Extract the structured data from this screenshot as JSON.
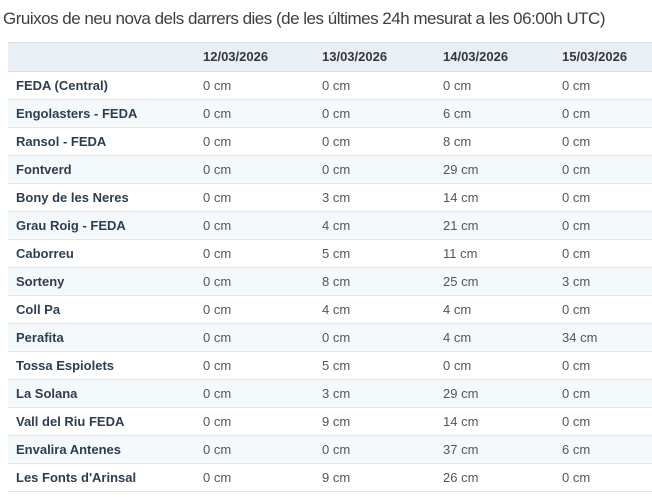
{
  "title": "Gruixos de neu nova dels darrers dies (de les últimes 24h mesurat a les 06:00h UTC)",
  "colors": {
    "header_background": "#e9eff4",
    "stripe_background": "#f4f9fc",
    "row_border": "#e3e7ea",
    "station_text": "#2d3e50",
    "value_text": "#51575e",
    "title_text": "#3f3f3f"
  },
  "chart_data": {
    "type": "table",
    "title": "Gruixos de neu nova dels darrers dies (de les últimes 24h mesurat a les 06:00h UTC)",
    "columns": [
      "",
      "12/03/2026",
      "13/03/2026",
      "14/03/2026",
      "15/03/2026"
    ],
    "rows": [
      {
        "station": "FEDA (Central)",
        "values": [
          "0 cm",
          "0 cm",
          "0 cm",
          "0 cm"
        ]
      },
      {
        "station": "Engolasters - FEDA",
        "values": [
          "0 cm",
          "0 cm",
          "6 cm",
          "0 cm"
        ]
      },
      {
        "station": "Ransol - FEDA",
        "values": [
          "0 cm",
          "0 cm",
          "8 cm",
          "0 cm"
        ]
      },
      {
        "station": "Fontverd",
        "values": [
          "0 cm",
          "0 cm",
          "29 cm",
          "0 cm"
        ]
      },
      {
        "station": "Bony de les Neres",
        "values": [
          "0 cm",
          "3 cm",
          "14 cm",
          "0 cm"
        ]
      },
      {
        "station": "Grau Roig - FEDA",
        "values": [
          "0 cm",
          "4 cm",
          "21 cm",
          "0 cm"
        ]
      },
      {
        "station": "Caborreu",
        "values": [
          "0 cm",
          "5 cm",
          "11 cm",
          "0 cm"
        ]
      },
      {
        "station": "Sorteny",
        "values": [
          "0 cm",
          "8 cm",
          "25 cm",
          "3 cm"
        ]
      },
      {
        "station": "Coll Pa",
        "values": [
          "0 cm",
          "4 cm",
          "4 cm",
          "0 cm"
        ]
      },
      {
        "station": "Perafita",
        "values": [
          "0 cm",
          "0 cm",
          "4 cm",
          "34 cm"
        ]
      },
      {
        "station": "Tossa Espiolets",
        "values": [
          "0 cm",
          "5 cm",
          "0 cm",
          "0 cm"
        ]
      },
      {
        "station": "La Solana",
        "values": [
          "0 cm",
          "3 cm",
          "29 cm",
          "0 cm"
        ]
      },
      {
        "station": "Vall del Riu FEDA",
        "values": [
          "0 cm",
          "9 cm",
          "14 cm",
          "0 cm"
        ]
      },
      {
        "station": "Envalira Antenes",
        "values": [
          "0 cm",
          "0 cm",
          "37 cm",
          "6 cm"
        ]
      },
      {
        "station": "Les Fonts d'Arinsal",
        "values": [
          "0 cm",
          "9 cm",
          "26 cm",
          "0 cm"
        ]
      }
    ]
  }
}
